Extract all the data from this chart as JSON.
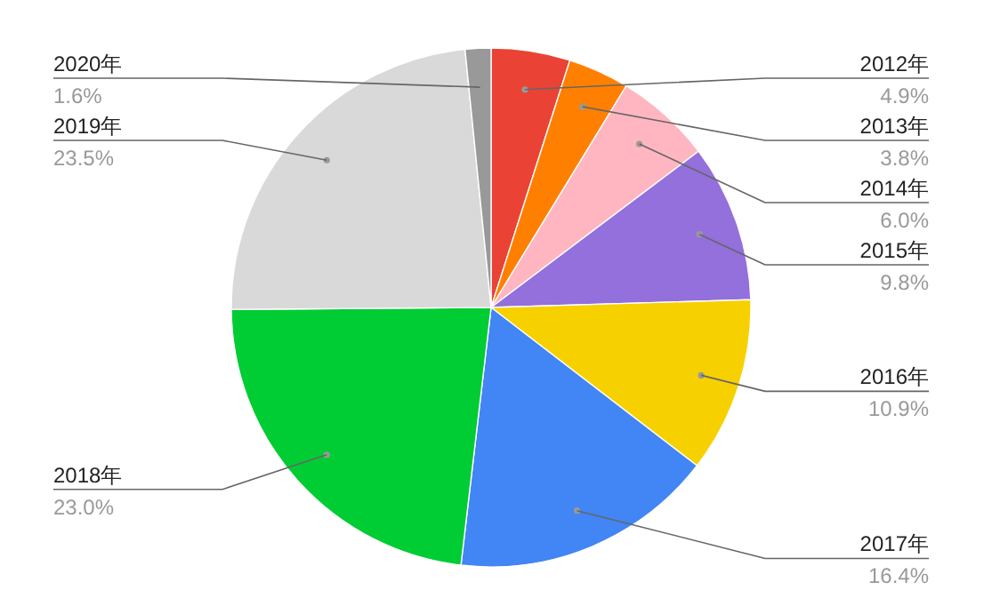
{
  "chart_data": {
    "type": "pie",
    "categories": [
      "2012年",
      "2013年",
      "2014年",
      "2015年",
      "2016年",
      "2017年",
      "2018年",
      "2019年",
      "2020年"
    ],
    "values": [
      4.9,
      3.8,
      6.0,
      9.8,
      10.9,
      16.4,
      23.0,
      23.5,
      1.6
    ],
    "colors": [
      "#ea4335",
      "#ff8000",
      "#ffb6c1",
      "#9370db",
      "#f7d000",
      "#4285f4",
      "#00cc33",
      "#d9d9d9",
      "#999999"
    ],
    "value_labels": [
      "4.9%",
      "3.8%",
      "6.0%",
      "9.8%",
      "10.9%",
      "16.4%",
      "23.0%",
      "23.5%",
      "1.6%"
    ]
  }
}
